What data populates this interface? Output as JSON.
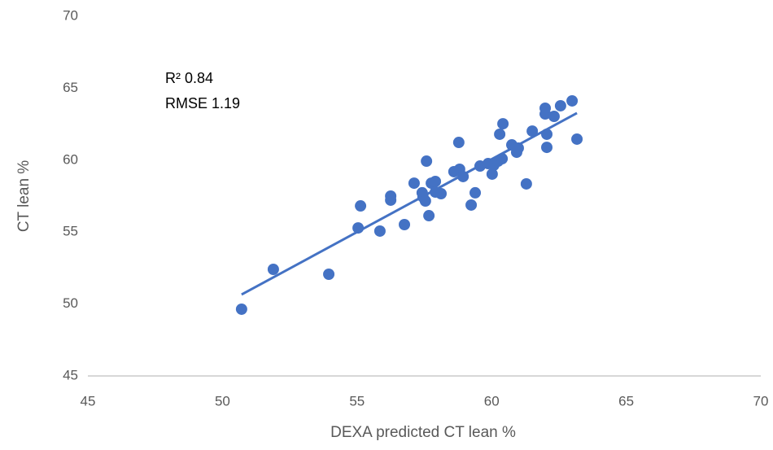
{
  "chart_data": {
    "type": "scatter",
    "x_label": "DEXA predicted CT lean %",
    "y_label": "CT lean  %",
    "annotations": [
      "R² 0.84",
      "RMSE 1.19"
    ],
    "color": "#4472c4",
    "x": [
      50.71,
      51.89,
      53.95,
      55.04,
      55.13,
      55.85,
      56.25,
      56.25,
      56.76,
      57.12,
      57.42,
      57.45,
      57.54,
      57.58,
      57.67,
      57.76,
      57.91,
      57.91,
      58.12,
      58.6,
      58.78,
      58.81,
      58.94,
      59.24,
      59.39,
      59.57,
      59.87,
      60.02,
      60.08,
      60.24,
      60.3,
      60.39,
      60.42,
      60.75,
      60.93,
      60.99,
      61.29,
      61.51,
      61.99,
      61.99,
      62.05,
      62.05,
      62.32,
      62.56,
      62.99,
      63.17
    ],
    "values": [
      49.64,
      52.41,
      52.07,
      55.29,
      56.82,
      55.07,
      57.5,
      57.22,
      55.52,
      58.4,
      57.73,
      57.44,
      57.16,
      59.93,
      56.14,
      58.4,
      58.52,
      57.78,
      57.67,
      59.2,
      61.23,
      59.37,
      58.86,
      56.88,
      57.73,
      59.59,
      59.76,
      59.03,
      59.65,
      59.93,
      61.8,
      60.1,
      62.53,
      61.06,
      60.55,
      60.84,
      58.35,
      62.02,
      63.21,
      63.61,
      61.8,
      60.89,
      63.04,
      63.78,
      64.12,
      61.46
    ],
    "trendline": {
      "x": [
        50.71,
        63.17
      ],
      "values": [
        50.66,
        63.27
      ]
    },
    "xlim": [
      45,
      70
    ],
    "xticks": [
      45,
      50,
      55,
      60,
      65,
      70
    ],
    "ylim": [
      45,
      70
    ],
    "yticks": [
      45,
      50,
      55,
      60,
      65,
      70
    ],
    "grid": false
  }
}
